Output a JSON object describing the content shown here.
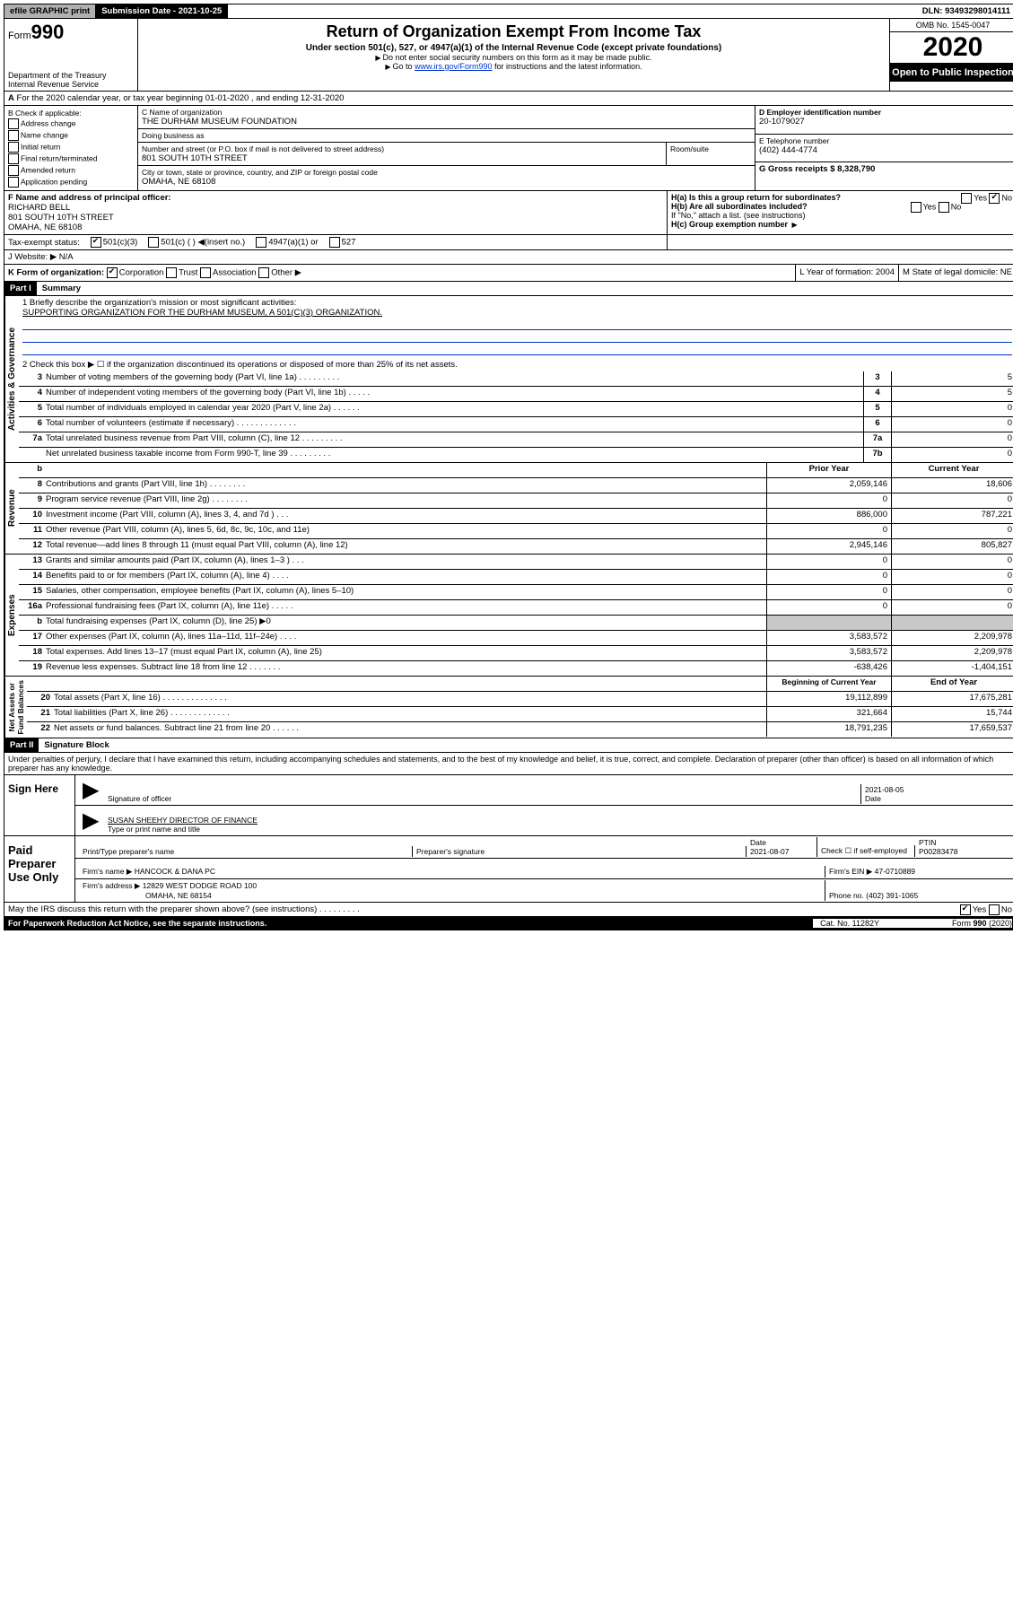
{
  "top": {
    "efile": "efile GRAPHIC print",
    "submission_label": "Submission Date - 2021-10-25",
    "dln": "DLN: 93493298014111"
  },
  "header": {
    "form_prefix": "Form",
    "form_no": "990",
    "dept": "Department of the Treasury\nInternal Revenue Service",
    "title": "Return of Organization Exempt From Income Tax",
    "subtitle": "Under section 501(c), 527, or 4947(a)(1) of the Internal Revenue Code (except private foundations)",
    "note1": "Do not enter social security numbers on this form as it may be made public.",
    "note2_pre": "Go to ",
    "note2_link": "www.irs.gov/Form990",
    "note2_post": " for instructions and the latest information.",
    "omb": "OMB No. 1545-0047",
    "year": "2020",
    "open": "Open to Public Inspection"
  },
  "row_a": "For the 2020 calendar year, or tax year beginning 01-01-2020   , and ending 12-31-2020",
  "check_b": {
    "label": "B Check if applicable:",
    "items": [
      "Address change",
      "Name change",
      "Initial return",
      "Final return/terminated",
      "Amended return",
      "Application pending"
    ]
  },
  "name_block": {
    "c_label": "C Name of organization",
    "c_val": "THE DURHAM MUSEUM FOUNDATION",
    "dba": "Doing business as",
    "street_label": "Number and street (or P.O. box if mail is not delivered to street address)",
    "room": "Room/suite",
    "street_val": "801 SOUTH 10TH STREET",
    "city_label": "City or town, state or province, country, and ZIP or foreign postal code",
    "city_val": "OMAHA, NE  68108"
  },
  "right_de": {
    "d_label": "D Employer identification number",
    "d_val": "20-1079027",
    "e_label": "E Telephone number",
    "e_val": "(402) 444-4774",
    "g_label": "G Gross receipts $ 8,328,790"
  },
  "fh": {
    "f_label": "F  Name and address of principal officer:",
    "f_name": "RICHARD BELL",
    "f_addr1": "801 SOUTH 10TH STREET",
    "f_addr2": "OMAHA, NE  68108",
    "ha": "H(a)  Is this a group return for subordinates?",
    "hb": "H(b)  Are all subordinates included?",
    "hb_note": "If \"No,\" attach a list. (see instructions)",
    "hc": "H(c)  Group exemption number"
  },
  "tax_status": {
    "label": "Tax-exempt status:",
    "opts": [
      "501(c)(3)",
      "501(c) (  )",
      "(insert no.)",
      "4947(a)(1) or",
      "527"
    ]
  },
  "website_j": "J   Website: ▶  N/A",
  "klm": {
    "k": "K Form of organization:",
    "k_opts": [
      "Corporation",
      "Trust",
      "Association",
      "Other ▶"
    ],
    "l": "L Year of formation: 2004",
    "m": "M State of legal domicile: NE"
  },
  "part1": {
    "label": "Part I",
    "title": "Summary"
  },
  "summary": {
    "line1_label": "1  Briefly describe the organization's mission or most significant activities:",
    "line1_val": "SUPPORTING ORGANIZATION FOR THE DURHAM MUSEUM, A 501(C)(3) ORGANIZATION.",
    "line2": "2   Check this box ▶ ☐  if the organization discontinued its operations or disposed of more than 25% of its net assets.",
    "rows_ag": [
      {
        "n": "3",
        "d": "Number of voting members of the governing body (Part VI, line 1a)  .   .   .   .   .   .   .   .   .",
        "box": "3",
        "v": "5"
      },
      {
        "n": "4",
        "d": "Number of independent voting members of the governing body (Part VI, line 1b)  .   .   .   .   .",
        "box": "4",
        "v": "5"
      },
      {
        "n": "5",
        "d": "Total number of individuals employed in calendar year 2020 (Part V, line 2a)   .   .   .   .   .   .",
        "box": "5",
        "v": "0"
      },
      {
        "n": "6",
        "d": "Total number of volunteers (estimate if necessary)   .   .   .   .   .   .   .   .   .   .   .   .   .",
        "box": "6",
        "v": "0"
      },
      {
        "n": "7a",
        "d": "Total unrelated business revenue from Part VIII, column (C), line 12  .   .   .   .   .   .   .   .   .",
        "box": "7a",
        "v": "0"
      },
      {
        "n": "",
        "d": "Net unrelated business taxable income from Form 990-T, line 39   .   .   .   .   .   .   .   .   .",
        "box": "7b",
        "v": "0"
      }
    ],
    "b_label": "b",
    "col_prior": "Prior Year",
    "col_current": "Current Year",
    "rev": [
      {
        "n": "8",
        "d": "Contributions and grants (Part VIII, line 1h)   .   .   .   .   .   .   .   .",
        "p": "2,059,146",
        "c": "18,606"
      },
      {
        "n": "9",
        "d": "Program service revenue (Part VIII, line 2g)   .   .   .   .   .   .   .   .",
        "p": "0",
        "c": "0"
      },
      {
        "n": "10",
        "d": "Investment income (Part VIII, column (A), lines 3, 4, and 7d )   .   .   .",
        "p": "886,000",
        "c": "787,221"
      },
      {
        "n": "11",
        "d": "Other revenue (Part VIII, column (A), lines 5, 6d, 8c, 9c, 10c, and 11e)",
        "p": "0",
        "c": "0"
      },
      {
        "n": "12",
        "d": "Total revenue—add lines 8 through 11 (must equal Part VIII, column (A), line 12)",
        "p": "2,945,146",
        "c": "805,827"
      }
    ],
    "exp": [
      {
        "n": "13",
        "d": "Grants and similar amounts paid (Part IX, column (A), lines 1–3 )   .   .   .",
        "p": "0",
        "c": "0"
      },
      {
        "n": "14",
        "d": "Benefits paid to or for members (Part IX, column (A), line 4)   .   .   .   .",
        "p": "0",
        "c": "0"
      },
      {
        "n": "15",
        "d": "Salaries, other compensation, employee benefits (Part IX, column (A), lines 5–10)",
        "p": "0",
        "c": "0"
      },
      {
        "n": "16a",
        "d": "Professional fundraising fees (Part IX, column (A), line 11e)   .   .   .   .   .",
        "p": "0",
        "c": "0"
      },
      {
        "n": "b",
        "d": "Total fundraising expenses (Part IX, column (D), line 25) ▶0",
        "p": "",
        "c": "",
        "grey": true
      },
      {
        "n": "17",
        "d": "Other expenses (Part IX, column (A), lines 11a–11d, 11f–24e)   .   .   .   .",
        "p": "3,583,572",
        "c": "2,209,978"
      },
      {
        "n": "18",
        "d": "Total expenses. Add lines 13–17 (must equal Part IX, column (A), line 25)",
        "p": "3,583,572",
        "c": "2,209,978"
      },
      {
        "n": "19",
        "d": "Revenue less expenses. Subtract line 18 from line 12  .   .   .   .   .   .   .",
        "p": "-638,426",
        "c": "-1,404,151"
      }
    ],
    "col_begin": "Beginning of Current Year",
    "col_end": "End of Year",
    "net": [
      {
        "n": "20",
        "d": "Total assets (Part X, line 16)  .   .   .   .   .   .   .   .   .   .   .   .   .   .",
        "p": "19,112,899",
        "c": "17,675,281"
      },
      {
        "n": "21",
        "d": "Total liabilities (Part X, line 26)  .   .   .   .   .   .   .   .   .   .   .   .   .",
        "p": "321,664",
        "c": "15,744"
      },
      {
        "n": "22",
        "d": "Net assets or fund balances. Subtract line 21 from line 20  .   .   .   .   .   .",
        "p": "18,791,235",
        "c": "17,659,537"
      }
    ]
  },
  "part2": {
    "label": "Part II",
    "title": "Signature Block"
  },
  "perjury": "Under penalties of perjury, I declare that I have examined this return, including accompanying schedules and statements, and to the best of my knowledge and belief, it is true, correct, and complete. Declaration of preparer (other than officer) is based on all information of which preparer has any knowledge.",
  "sign": {
    "here": "Sign Here",
    "sig_officer": "Signature of officer",
    "date1": "2021-08-05",
    "date_lbl": "Date",
    "typed": "SUSAN SHEEHY  DIRECTOR OF FINANCE",
    "typed_lbl": "Type or print name and title"
  },
  "paid": {
    "label": "Paid Preparer Use Only",
    "col1": "Print/Type preparer's name",
    "col2": "Preparer's signature",
    "col3": "Date",
    "date": "2021-08-07",
    "check": "Check ☐ if self-employed",
    "ptin_lbl": "PTIN",
    "ptin": "P00283478",
    "firm_name_lbl": "Firm's name    ▶ ",
    "firm_name": "HANCOCK & DANA PC",
    "firm_ein": "Firm's EIN ▶ 47-0710889",
    "firm_addr_lbl": "Firm's address ▶ ",
    "firm_addr": "12829 WEST DODGE ROAD 100",
    "firm_city": "OMAHA, NE  68154",
    "phone": "Phone no. (402) 391-1065"
  },
  "discuss": "May the IRS discuss this return with the preparer shown above? (see instructions)   .   .   .   .   .   .   .   .   .",
  "footer": {
    "left": "For Paperwork Reduction Act Notice, see the separate instructions.",
    "mid": "Cat. No. 11282Y",
    "right": "Form 990 (2020)"
  }
}
